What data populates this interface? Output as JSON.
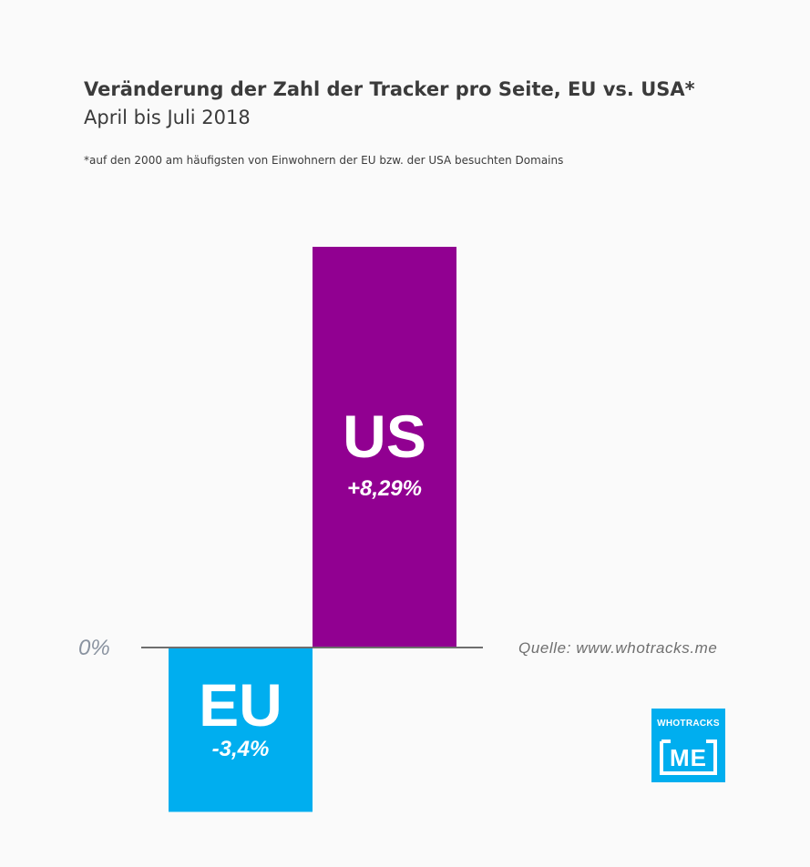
{
  "header": {
    "title": "Veränderung der Zahl der Tracker pro Seite, EU vs. USA*",
    "subtitle": "April bis Juli 2018",
    "footnote": "*auf den 2000 am häufigsten von Einwohnern der EU bzw. der USA besuchten Domains"
  },
  "source": "Quelle: www.whotracks.me",
  "logo": {
    "top": "WHOTRACKS",
    "bottom": "ME"
  },
  "colors": {
    "eu": "#00aeef",
    "us": "#910091",
    "baseline": "#6e6e6e",
    "zero_label": "#8a93a0"
  },
  "chart_data": {
    "type": "bar",
    "title": "Veränderung der Zahl der Tracker pro Seite, EU vs. USA*",
    "subtitle": "April bis Juli 2018",
    "categories": [
      "EU",
      "US"
    ],
    "values": [
      -3.4,
      8.29
    ],
    "value_labels": [
      "-3,4%",
      "+8,29%"
    ],
    "zero_label": "0%",
    "unit": "%",
    "ylim": [
      -3.4,
      8.29
    ],
    "grid": false,
    "legend": "none"
  }
}
